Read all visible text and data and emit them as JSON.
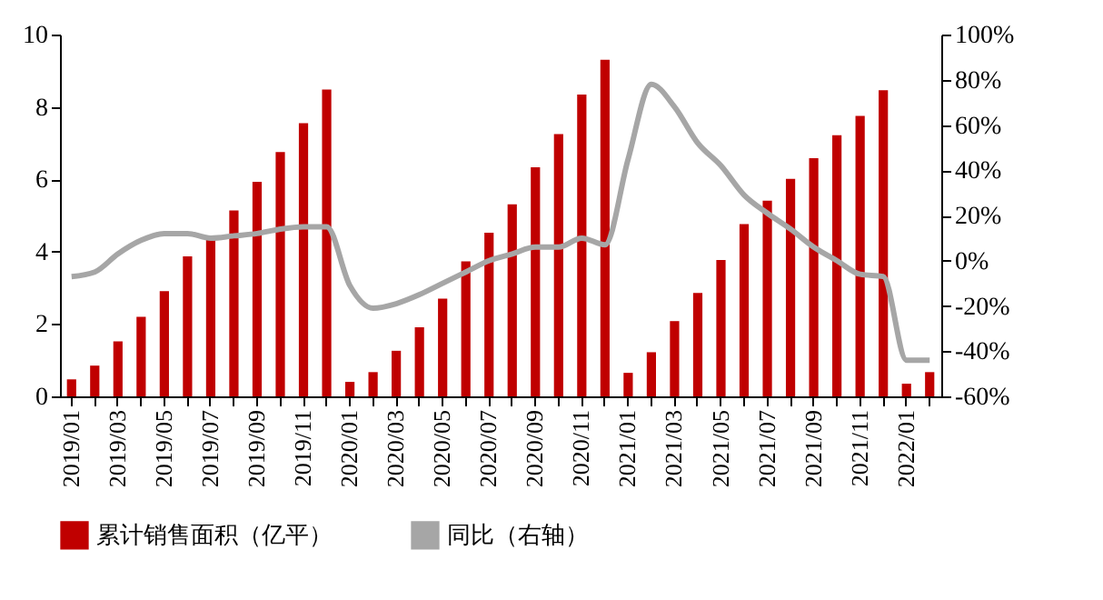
{
  "chart_data": {
    "type": "bar",
    "categories": [
      "2019/01",
      null,
      "2019/03",
      null,
      "2019/05",
      null,
      "2019/07",
      null,
      "2019/09",
      null,
      "2019/11",
      null,
      "2020/01",
      null,
      "2020/03",
      null,
      "2020/05",
      null,
      "2020/07",
      null,
      "2020/09",
      null,
      "2020/11",
      null,
      "2021/01",
      null,
      "2021/03",
      null,
      "2021/05",
      null,
      "2021/07",
      null,
      "2021/09",
      null,
      "2021/11",
      null,
      "2022/01",
      null
    ],
    "series": [
      {
        "name": "累计销售面积（亿平）",
        "color": "#c00000",
        "values": [
          0.47,
          0.85,
          1.52,
          2.2,
          2.91,
          3.87,
          4.34,
          5.14,
          5.93,
          6.75,
          7.55,
          8.48,
          0.4,
          0.67,
          1.26,
          1.91,
          2.7,
          3.73,
          4.52,
          5.31,
          6.33,
          7.25,
          8.34,
          9.3,
          0.65,
          1.22,
          2.08,
          2.86,
          3.77,
          4.76,
          5.41,
          6.01,
          6.58,
          7.22,
          7.75,
          8.46,
          0.35,
          0.67
        ]
      },
      {
        "name": "同比（右轴）",
        "color": "#a6a6a6",
        "type": "line",
        "axis": "y2",
        "values": [
          -7,
          -5,
          3,
          9,
          12,
          12,
          10,
          11,
          12,
          14,
          15,
          15,
          -11,
          -21,
          -19,
          -15,
          -10,
          -5,
          0,
          3,
          6,
          6,
          10,
          7,
          45,
          78,
          68,
          52,
          42,
          29,
          21,
          14,
          6,
          0,
          -6,
          -7,
          -44,
          -44
        ]
      }
    ],
    "ylim": [
      0,
      10
    ],
    "yticks": [
      0,
      2,
      4,
      6,
      8,
      10
    ],
    "y2lim": [
      -60,
      100
    ],
    "y2ticks": [
      {
        "value": -60,
        "label": "-60%"
      },
      {
        "value": -40,
        "label": "-40%"
      },
      {
        "value": -20,
        "label": "-20%"
      },
      {
        "value": 0,
        "label": "0%"
      },
      {
        "value": 20,
        "label": "20%"
      },
      {
        "value": 40,
        "label": "40%"
      },
      {
        "value": 60,
        "label": "60%"
      },
      {
        "value": 80,
        "label": "80%"
      },
      {
        "value": 100,
        "label": "100%"
      }
    ],
    "grid": false,
    "legend": "bottom"
  }
}
